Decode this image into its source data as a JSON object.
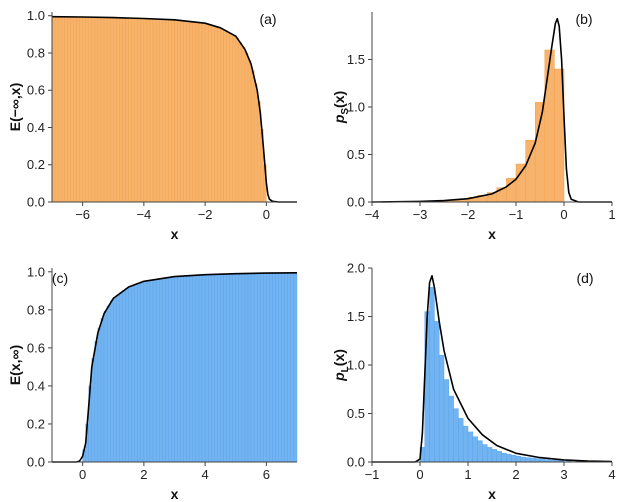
{
  "colors": {
    "orange": "#f7b36b",
    "orange_stroke": "#f3a14c",
    "blue": "#72b4f2",
    "blue_stroke": "#5aa2ea",
    "curve": "#000000"
  },
  "chart_data": [
    {
      "type": "bar",
      "panel": "(a)",
      "xlabel": "x",
      "ylabel": "E(−∞,x)",
      "xlim": [
        -7,
        1
      ],
      "ylim": [
        0,
        1.02
      ],
      "xticks": [
        -6,
        -4,
        -2,
        0
      ],
      "xtick_labels": [
        "−6",
        "−4",
        "−2",
        "0"
      ],
      "yticks": [
        0.0,
        0.2,
        0.4,
        0.6,
        0.8,
        1.0
      ],
      "ytick_labels": [
        "0.0",
        "0.2",
        "0.4",
        "0.6",
        "0.8",
        "1.0"
      ],
      "bar_color": "orange",
      "bars": {
        "x_start": -7,
        "x_end": 0,
        "count": 70
      },
      "curve": [
        [
          -7,
          0.995
        ],
        [
          -6,
          0.993
        ],
        [
          -5,
          0.99
        ],
        [
          -4,
          0.985
        ],
        [
          -3,
          0.978
        ],
        [
          -2,
          0.96
        ],
        [
          -1.5,
          0.935
        ],
        [
          -1,
          0.89
        ],
        [
          -0.7,
          0.82
        ],
        [
          -0.5,
          0.74
        ],
        [
          -0.3,
          0.6
        ],
        [
          -0.2,
          0.48
        ],
        [
          -0.1,
          0.3
        ],
        [
          0,
          0.1
        ],
        [
          0.05,
          0.04
        ],
        [
          0.1,
          0.015
        ],
        [
          0.2,
          0.004
        ],
        [
          0.4,
          0.0
        ],
        [
          1,
          0.0
        ]
      ]
    },
    {
      "type": "bar",
      "panel": "(b)",
      "xlabel": "x",
      "ylabel": "pS(x)",
      "ylabel_main": "p",
      "ylabel_sub": "S",
      "ylabel_tail": "(x)",
      "xlim": [
        -4,
        1
      ],
      "ylim": [
        0,
        2.0
      ],
      "xticks": [
        -4,
        -3,
        -2,
        -1,
        0,
        1
      ],
      "xtick_labels": [
        "−4",
        "−3",
        "−2",
        "−1",
        "0",
        "1"
      ],
      "yticks": [
        0.0,
        0.5,
        1.0,
        1.5
      ],
      "ytick_labels": [
        "0.0",
        "0.5",
        "1.0",
        "1.5"
      ],
      "bar_color": "orange",
      "bars": {
        "x": [
          -2.5,
          -2.3,
          -2.1,
          -1.9,
          -1.7,
          -1.5,
          -1.3,
          -1.1,
          -0.9,
          -0.7,
          -0.5,
          -0.3,
          -0.1
        ],
        "values": [
          0.01,
          0.02,
          0.03,
          0.05,
          0.07,
          0.1,
          0.15,
          0.25,
          0.4,
          0.65,
          1.05,
          1.6,
          1.4
        ],
        "width": 0.2
      },
      "curve": [
        [
          -4,
          0.0
        ],
        [
          -3,
          0.006
        ],
        [
          -2.5,
          0.015
        ],
        [
          -2,
          0.035
        ],
        [
          -1.5,
          0.085
        ],
        [
          -1.2,
          0.16
        ],
        [
          -1,
          0.24
        ],
        [
          -0.8,
          0.38
        ],
        [
          -0.6,
          0.62
        ],
        [
          -0.45,
          0.95
        ],
        [
          -0.35,
          1.3
        ],
        [
          -0.25,
          1.65
        ],
        [
          -0.18,
          1.88
        ],
        [
          -0.14,
          1.93
        ],
        [
          -0.1,
          1.85
        ],
        [
          -0.05,
          1.5
        ],
        [
          0,
          0.9
        ],
        [
          0.05,
          0.35
        ],
        [
          0.1,
          0.1
        ],
        [
          0.15,
          0.03
        ],
        [
          0.3,
          0.0
        ],
        [
          1,
          0.0
        ]
      ]
    },
    {
      "type": "bar",
      "panel": "(c)",
      "xlabel": "x",
      "ylabel": "E(x,∞)",
      "xlim": [
        -1,
        7
      ],
      "ylim": [
        0,
        1.02
      ],
      "xticks": [
        0,
        2,
        4,
        6
      ],
      "xtick_labels": [
        "0",
        "2",
        "4",
        "6"
      ],
      "yticks": [
        0.0,
        0.2,
        0.4,
        0.6,
        0.8,
        1.0
      ],
      "ytick_labels": [
        "0.0",
        "0.2",
        "0.4",
        "0.6",
        "0.8",
        "1.0"
      ],
      "bar_color": "blue",
      "bars": {
        "x_start": 0,
        "x_end": 7,
        "count": 70
      },
      "curve": [
        [
          -1,
          0.0
        ],
        [
          -0.2,
          0.0
        ],
        [
          -0.1,
          0.005
        ],
        [
          0,
          0.03
        ],
        [
          0.1,
          0.1
        ],
        [
          0.2,
          0.3
        ],
        [
          0.3,
          0.5
        ],
        [
          0.5,
          0.68
        ],
        [
          0.7,
          0.78
        ],
        [
          1,
          0.86
        ],
        [
          1.5,
          0.92
        ],
        [
          2,
          0.95
        ],
        [
          3,
          0.975
        ],
        [
          4,
          0.985
        ],
        [
          5,
          0.99
        ],
        [
          6,
          0.993
        ],
        [
          7,
          0.995
        ]
      ]
    },
    {
      "type": "bar",
      "panel": "(d)",
      "xlabel": "x",
      "ylabel": "pL(x)",
      "ylabel_main": "p",
      "ylabel_sub": "L",
      "ylabel_tail": "(x)",
      "xlim": [
        -1,
        4
      ],
      "ylim": [
        0,
        2.0
      ],
      "xticks": [
        -1,
        0,
        1,
        2,
        3,
        4
      ],
      "xtick_labels": [
        "−1",
        "0",
        "1",
        "2",
        "3",
        "4"
      ],
      "yticks": [
        0.0,
        0.5,
        1.0,
        1.5,
        2.0
      ],
      "ytick_labels": [
        "0.0",
        "0.5",
        "1.0",
        "1.5",
        "2.0"
      ],
      "bar_color": "blue",
      "bars": {
        "x": [
          0.05,
          0.15,
          0.25,
          0.35,
          0.45,
          0.55,
          0.65,
          0.75,
          0.85,
          0.95,
          1.05,
          1.15,
          1.25,
          1.35,
          1.45,
          1.55,
          1.65,
          1.75,
          1.85,
          1.95,
          2.05,
          2.15,
          2.25,
          2.35,
          2.45,
          2.55,
          2.65,
          2.75,
          2.85,
          2.95,
          3.1,
          3.3,
          3.5,
          3.7,
          3.9
        ],
        "values": [
          0.15,
          1.55,
          1.8,
          1.45,
          1.1,
          0.85,
          0.68,
          0.55,
          0.45,
          0.37,
          0.31,
          0.26,
          0.22,
          0.18,
          0.15,
          0.13,
          0.11,
          0.09,
          0.08,
          0.07,
          0.06,
          0.05,
          0.045,
          0.04,
          0.035,
          0.03,
          0.025,
          0.02,
          0.018,
          0.015,
          0.012,
          0.009,
          0.007,
          0.005,
          0.004
        ],
        "width": 0.1
      },
      "curve": [
        [
          -1,
          0.0
        ],
        [
          -0.1,
          0.0
        ],
        [
          0,
          0.03
        ],
        [
          0.05,
          0.3
        ],
        [
          0.1,
          0.9
        ],
        [
          0.15,
          1.5
        ],
        [
          0.2,
          1.85
        ],
        [
          0.25,
          1.92
        ],
        [
          0.3,
          1.8
        ],
        [
          0.4,
          1.45
        ],
        [
          0.5,
          1.15
        ],
        [
          0.7,
          0.75
        ],
        [
          1,
          0.45
        ],
        [
          1.3,
          0.28
        ],
        [
          1.6,
          0.17
        ],
        [
          2,
          0.09
        ],
        [
          2.5,
          0.045
        ],
        [
          3,
          0.022
        ],
        [
          3.5,
          0.01
        ],
        [
          4,
          0.005
        ]
      ]
    }
  ]
}
